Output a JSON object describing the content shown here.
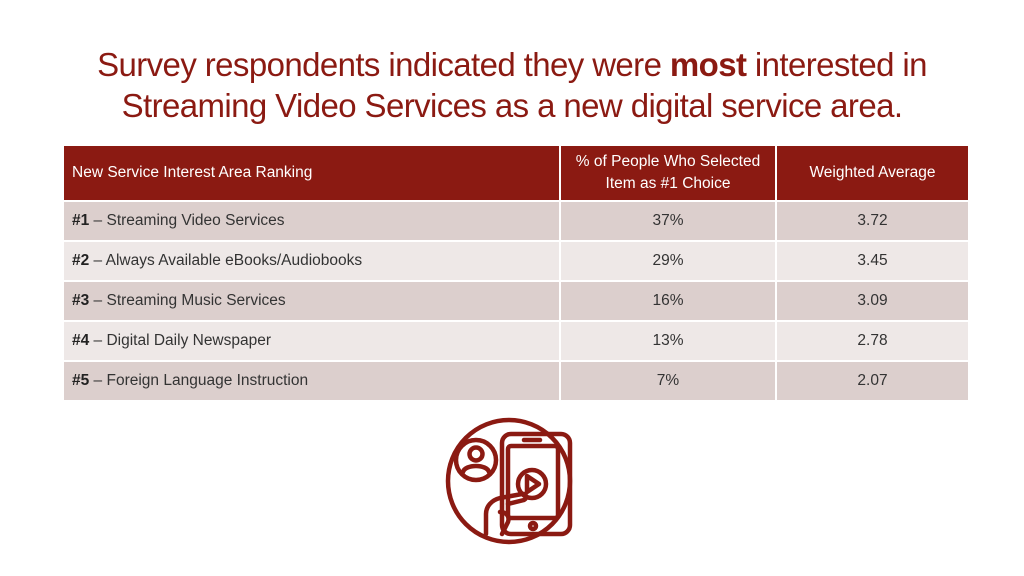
{
  "title": {
    "line1_pre": "Survey respondents indicated they were ",
    "line1_emph": "most",
    "line1_post": " interested in",
    "line2": "Streaming Video Services as a new digital service area."
  },
  "table": {
    "headers": [
      "New Service Interest Area Ranking",
      "% of People Who Selected Item as #1 Choice",
      "Weighted Average"
    ],
    "rows": [
      {
        "rank": "#1",
        "sep": " – ",
        "name": "Streaming Video Services",
        "pct": "37%",
        "avg": "3.72"
      },
      {
        "rank": "#2",
        "sep": " – ",
        "name": "Always Available eBooks/Audiobooks",
        "pct": "29%",
        "avg": "3.45"
      },
      {
        "rank": "#3",
        "sep": " – ",
        "name": "Streaming Music Services",
        "pct": "16%",
        "avg": "3.09"
      },
      {
        "rank": "#4",
        "sep": " – ",
        "name": "Digital Daily Newspaper",
        "pct": "13%",
        "avg": "2.78"
      },
      {
        "rank": "#5",
        "sep": " – ",
        "name": "Foreign Language Instruction",
        "pct": "7%",
        "avg": "2.07"
      }
    ]
  },
  "colors": {
    "accent": "#8b1a12",
    "row_odd": "#dccfcd",
    "row_even": "#eee8e7"
  },
  "icon": {
    "name": "streaming-video-phone-icon"
  }
}
